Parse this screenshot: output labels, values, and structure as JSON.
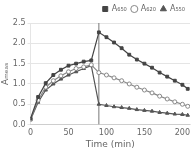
{
  "chart_data": {
    "type": "line",
    "xlabel": "Time (min)",
    "ylabel": "Aₘₑₐₛ",
    "xlim": [
      0,
      210
    ],
    "xticks": [
      0,
      50,
      100,
      150,
      200
    ],
    "ylim": [
      0.0,
      2.5
    ],
    "yticks": [
      {
        "value": 0.0,
        "label": "0.0"
      },
      0.5,
      {
        "value": 1.0,
        "label": "1.0"
      },
      1.5,
      {
        "value": 2.0,
        "label": "2.0"
      },
      2.5
    ],
    "grid": "y",
    "legend": "upper right",
    "vlines": [
      {
        "x": 90,
        "color": "#777777"
      }
    ],
    "x": [
      0,
      10,
      20,
      30,
      40,
      50,
      60,
      70,
      80,
      90,
      100,
      110,
      120,
      130,
      140,
      150,
      160,
      170,
      180,
      190,
      200,
      207
    ],
    "series": [
      {
        "name": "A₆₅₀",
        "color": "#444444",
        "marker": "square",
        "values": [
          0.15,
          0.68,
          1.02,
          1.22,
          1.35,
          1.45,
          1.5,
          1.55,
          1.58,
          2.27,
          2.15,
          2.02,
          1.88,
          1.72,
          1.6,
          1.5,
          1.4,
          1.28,
          1.18,
          1.08,
          0.98,
          0.88
        ]
      },
      {
        "name": "A₆₂₀",
        "color": "#888888",
        "marker": "open_circle",
        "values": [
          0.13,
          0.6,
          0.92,
          1.08,
          1.2,
          1.3,
          1.38,
          1.42,
          1.47,
          1.28,
          1.22,
          1.15,
          1.08,
          1.0,
          0.92,
          0.85,
          0.78,
          0.7,
          0.63,
          0.56,
          0.5,
          0.45
        ]
      },
      {
        "name": "A₅₅₀",
        "color": "#555555",
        "marker": "triangle",
        "values": [
          0.12,
          0.55,
          0.85,
          1.0,
          1.12,
          1.22,
          1.3,
          1.38,
          1.45,
          0.5,
          0.47,
          0.44,
          0.42,
          0.4,
          0.37,
          0.35,
          0.33,
          0.3,
          0.28,
          0.26,
          0.25,
          0.23
        ]
      }
    ]
  }
}
